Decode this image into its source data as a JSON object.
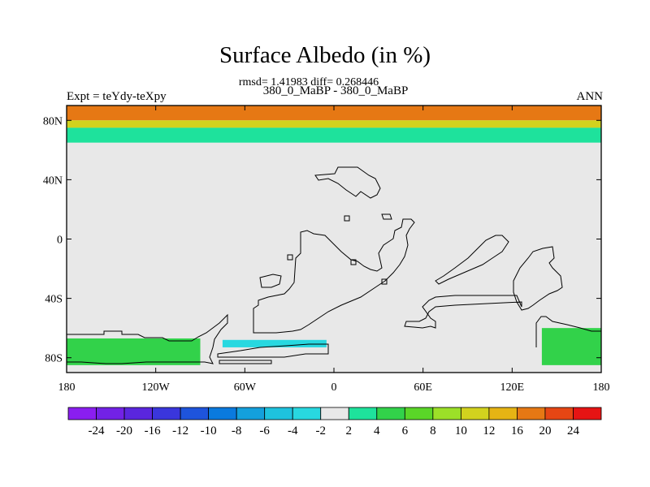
{
  "title": "Surface Albedo (in %)",
  "stats_line": "rmsd= 1.41983 diff= 0.268446",
  "case_line": "380_0_MaBP - 380_0_MaBP",
  "expt_label": "Expt = teYdy-teXpy",
  "season_label": "ANN",
  "chart_data": {
    "type": "heatmap",
    "title": "Surface Albedo (in %)",
    "xlabel": "",
    "ylabel": "",
    "xlim": [
      -180,
      180
    ],
    "ylim": [
      -90,
      90
    ],
    "x_ticks": [
      {
        "value": -180,
        "label": "180"
      },
      {
        "value": -120,
        "label": "120W"
      },
      {
        "value": -60,
        "label": "60W"
      },
      {
        "value": 0,
        "label": "0"
      },
      {
        "value": 60,
        "label": "60E"
      },
      {
        "value": 120,
        "label": "120E"
      },
      {
        "value": 180,
        "label": "180"
      }
    ],
    "y_ticks": [
      {
        "value": 80,
        "label": "80N"
      },
      {
        "value": 40,
        "label": "40N"
      },
      {
        "value": 0,
        "label": "0"
      },
      {
        "value": -40,
        "label": "40S"
      },
      {
        "value": -80,
        "label": "80S"
      }
    ],
    "background_color": "#e8e8e8",
    "colorbar": {
      "levels": [
        "-24",
        "-20",
        "-16",
        "-12",
        "-10",
        "-8",
        "-6",
        "-4",
        "-2",
        "2",
        "4",
        "6",
        "8",
        "10",
        "12",
        "16",
        "20",
        "24"
      ],
      "colors": [
        "#8a1ef0",
        "#7222e6",
        "#5a26de",
        "#3a36dc",
        "#1e54dc",
        "#0a7ade",
        "#14a0dc",
        "#1ec2de",
        "#28d8e0",
        "#e8e8e8",
        "#1ee29c",
        "#32d24a",
        "#5ad628",
        "#9ce028",
        "#d2d21e",
        "#e6b414",
        "#e67814",
        "#e64614",
        "#e61414"
      ]
    },
    "regions": [
      {
        "level": "12 to 20",
        "color": "#e67814",
        "lon": [
          -180,
          180
        ],
        "lat": [
          80,
          90
        ]
      },
      {
        "level": "8 to 12",
        "color": "#d2d21e",
        "lon": [
          -180,
          180
        ],
        "lat": [
          75,
          80
        ]
      },
      {
        "level": "2 to 8",
        "color": "#1ee29c",
        "lon": [
          -180,
          180
        ],
        "lat": [
          65,
          75
        ]
      },
      {
        "level": "2 to 8",
        "color": "#32d24a",
        "lon": [
          -180,
          -90
        ],
        "lat": [
          -85,
          -67
        ]
      },
      {
        "level": "2 to 8",
        "color": "#32d24a",
        "lon": [
          140,
          180
        ],
        "lat": [
          -85,
          -60
        ]
      },
      {
        "level": "-4 to -2",
        "color": "#28d8e0",
        "lon": [
          -75,
          -5
        ],
        "lat": [
          -73,
          -68
        ]
      }
    ]
  }
}
